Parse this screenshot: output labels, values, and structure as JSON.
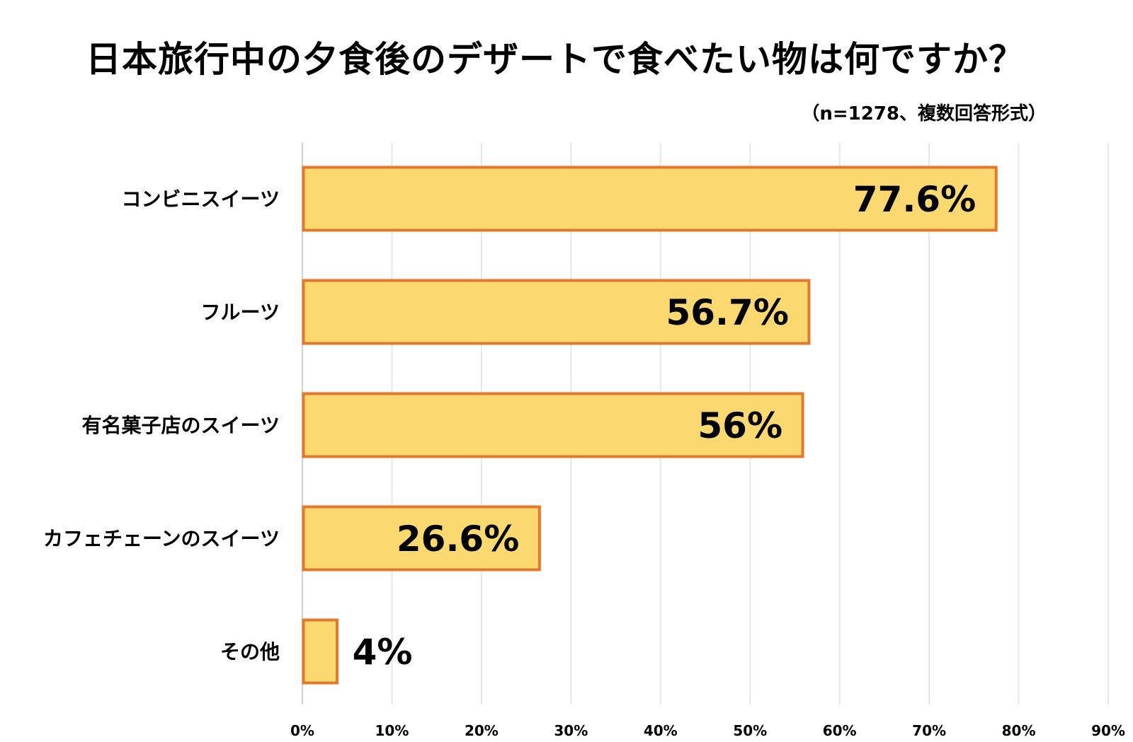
{
  "chart_data": {
    "type": "bar",
    "orientation": "horizontal",
    "title": "日本旅行中の夕食後のデザートで食べたい物は何ですか？",
    "subtitle": "（n=1278、複数回答形式）",
    "categories": [
      "コンビニスイーツ",
      "フルーツ",
      "有名菓子店のスイーツ",
      "カフェチェーンのスイーツ",
      "その他"
    ],
    "values": [
      77.6,
      56.7,
      56,
      26.6,
      4
    ],
    "data_labels": [
      "77.6%",
      "56.7%",
      "56%",
      "26.6%",
      "4%"
    ],
    "xlim": [
      0,
      90
    ],
    "x_ticks": [
      0,
      10,
      20,
      30,
      40,
      50,
      60,
      70,
      80,
      90
    ],
    "x_tick_labels": [
      "0%",
      "10%",
      "20%",
      "30%",
      "40%",
      "50%",
      "60%",
      "70%",
      "80%",
      "90%"
    ],
    "grid": true,
    "xlabel": "",
    "ylabel": "",
    "colors": {
      "bar_fill": "#FCD970",
      "bar_border": "#E4782C",
      "grid": "#E6E6E6",
      "axis": "#D0D0D0"
    }
  }
}
